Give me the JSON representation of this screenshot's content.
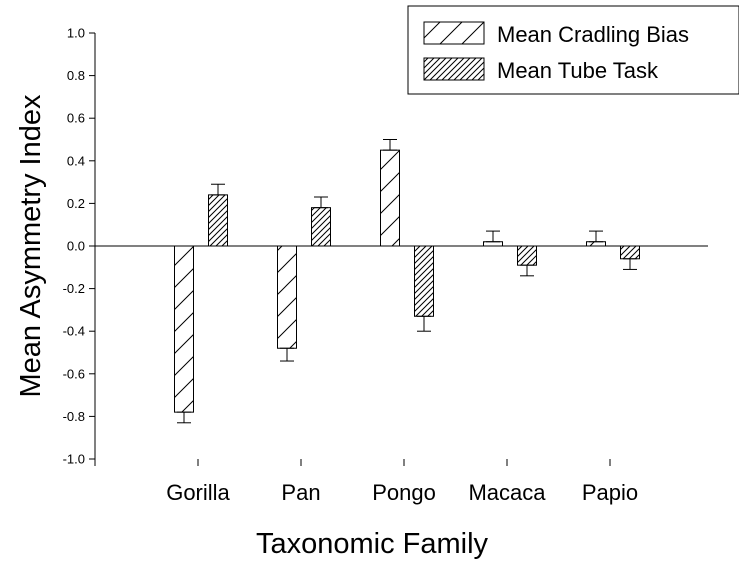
{
  "chart_data": {
    "type": "bar",
    "xlabel": "Taxonomic Family",
    "ylabel": "Mean Asymmetry Index",
    "ylim": [
      -1.0,
      1.0
    ],
    "yticks": [
      "-1.0",
      "-0.8",
      "-0.6",
      "-0.4",
      "-0.2",
      "0.0",
      "0.2",
      "0.4",
      "0.6",
      "0.8",
      "1.0"
    ],
    "categories": [
      "Gorilla",
      "Pan",
      "Pongo",
      "Macaca",
      "Papio"
    ],
    "grid": false,
    "legend_position": "top-right",
    "series": [
      {
        "name": "Mean Cradling Bias",
        "pattern": "sparse-hatch",
        "values": [
          -0.78,
          -0.48,
          0.45,
          0.02,
          0.02
        ],
        "errors": [
          0.05,
          0.06,
          0.05,
          0.05,
          0.05
        ]
      },
      {
        "name": "Mean Tube Task",
        "pattern": "dense-hatch",
        "values": [
          0.24,
          0.18,
          -0.33,
          -0.09,
          -0.06
        ],
        "errors": [
          0.05,
          0.05,
          0.07,
          0.05,
          0.05
        ]
      }
    ]
  }
}
